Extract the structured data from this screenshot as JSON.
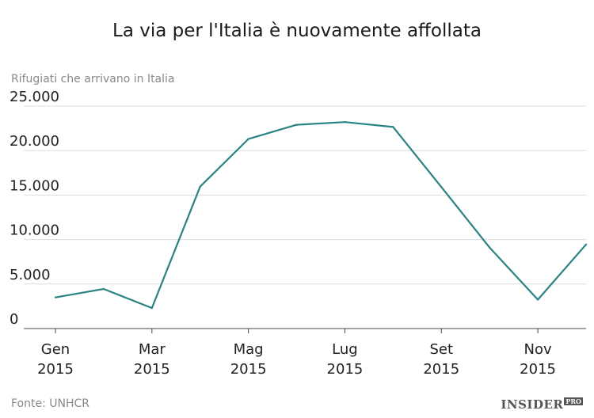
{
  "chart_data": {
    "type": "line",
    "title": "La via per l'Italia è nuovamente affollata",
    "subtitle": "Rifugiati che arrivano in Italia",
    "source": "Fonte: UNHCR",
    "brand": "INSIDER",
    "brand_badge": "PRO",
    "x": [
      "2015-01",
      "2015-02",
      "2015-03",
      "2015-04",
      "2015-05",
      "2015-06",
      "2015-07",
      "2015-08",
      "2015-09",
      "2015-10",
      "2015-11",
      "2015-12"
    ],
    "x_tick_labels": [
      {
        "month": "Gen",
        "year": "2015"
      },
      {
        "month": "Mar",
        "year": "2015"
      },
      {
        "month": "Mag",
        "year": "2015"
      },
      {
        "month": "Lug",
        "year": "2015"
      },
      {
        "month": "Set",
        "year": "2015"
      },
      {
        "month": "Nov",
        "year": "2015"
      }
    ],
    "x_tick_indices": [
      0,
      2,
      4,
      6,
      8,
      10
    ],
    "values": [
      3500,
      4450,
      2300,
      15950,
      21300,
      22900,
      23200,
      22650,
      15900,
      9100,
      3250,
      9450
    ],
    "y_ticks": [
      0,
      5000,
      10000,
      15000,
      20000,
      25000
    ],
    "y_tick_labels": [
      "0",
      "5.000",
      "10.000",
      "15.000",
      "20.000",
      "25.000"
    ],
    "ylim": [
      0,
      25000
    ],
    "grid": true,
    "line_color": "#2a8383",
    "grid_color": "#dddddd"
  }
}
